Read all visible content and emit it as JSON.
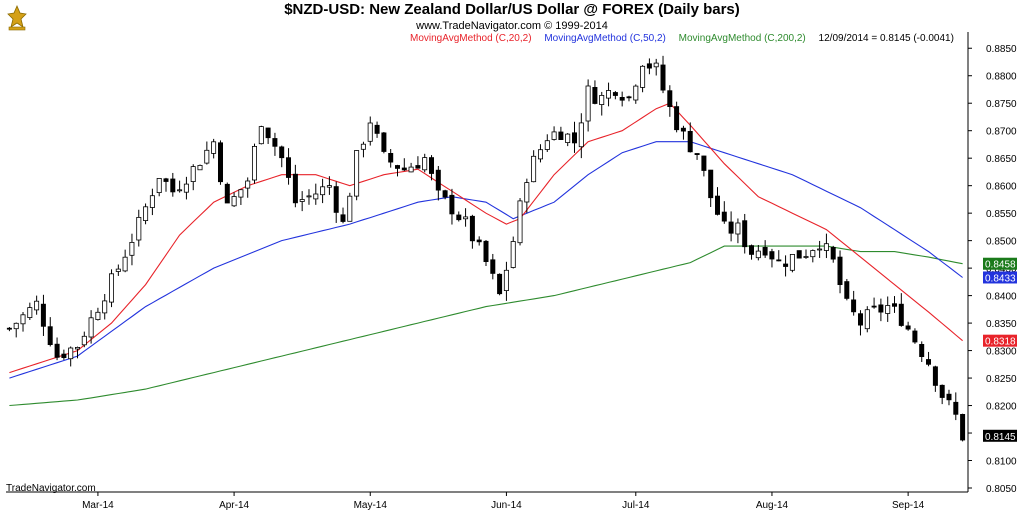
{
  "header": {
    "title": "$NZD-USD:  New Zealand Dollar/US Dollar @ FOREX  (Daily bars)",
    "copyright": "www.TradeNavigator.com © 1999-2014"
  },
  "legend": {
    "ma20": "MovingAvgMethod (C,20,2)",
    "ma50": "MovingAvgMethod (C,50,2)",
    "ma200": "MovingAvgMethod (C,200,2)",
    "last_value": "12/09/2014 = 0.8145 (-0.0041)"
  },
  "footer": {
    "brand": "TradeNavigator.com"
  },
  "colors": {
    "ma20": "#e8232a",
    "ma50": "#2233dd",
    "ma200": "#2e8b2e",
    "candle": "#000000",
    "logo": "#d4a017"
  },
  "chart_data": {
    "type": "candlestick",
    "y_axis": {
      "ylim": [
        0.805,
        0.8865
      ],
      "ticks": [
        "0.8850",
        "0.8800",
        "0.8750",
        "0.8700",
        "0.8650",
        "0.8600",
        "0.8550",
        "0.8500",
        "0.8450",
        "0.8400",
        "0.8350",
        "0.8300",
        "0.8250",
        "0.8200",
        "0.8150",
        "0.8100",
        "0.8050"
      ],
      "side": "right"
    },
    "x_axis": {
      "month_labels": [
        {
          "label": "Mar-14",
          "index": 13
        },
        {
          "label": "Apr-14",
          "index": 33
        },
        {
          "label": "May-14",
          "index": 53
        },
        {
          "label": "Jun-14",
          "index": 73
        },
        {
          "label": "Jul-14",
          "index": 92
        },
        {
          "label": "Aug-14",
          "index": 112
        },
        {
          "label": "Sep-14",
          "index": 132
        }
      ]
    },
    "value_labels": [
      {
        "series": "ma200",
        "text": "0.8458",
        "value": 0.8458,
        "bg": "#1a7a1a"
      },
      {
        "series": "ma50",
        "text": "0.8433",
        "value": 0.8433,
        "bg": "#2233dd"
      },
      {
        "series": "ma20",
        "text": "0.8318",
        "value": 0.8318,
        "bg": "#e8232a"
      },
      {
        "series": "close",
        "text": "0.8145",
        "value": 0.8145,
        "bg": "#000000"
      }
    ],
    "close_path": [
      [
        0,
        0.834
      ],
      [
        4,
        0.8385
      ],
      [
        7,
        0.829
      ],
      [
        10,
        0.831
      ],
      [
        13,
        0.838
      ],
      [
        16,
        0.845
      ],
      [
        19,
        0.853
      ],
      [
        22,
        0.862
      ],
      [
        24,
        0.859
      ],
      [
        27,
        0.863
      ],
      [
        30,
        0.868
      ],
      [
        32,
        0.856
      ],
      [
        35,
        0.861
      ],
      [
        37,
        0.872
      ],
      [
        40,
        0.865
      ],
      [
        42,
        0.857
      ],
      [
        44,
        0.858
      ],
      [
        47,
        0.86
      ],
      [
        49,
        0.853
      ],
      [
        51,
        0.865
      ],
      [
        53,
        0.872
      ],
      [
        55,
        0.865
      ],
      [
        58,
        0.863
      ],
      [
        61,
        0.865
      ],
      [
        63,
        0.858
      ],
      [
        65,
        0.856
      ],
      [
        67,
        0.853
      ],
      [
        70,
        0.846
      ],
      [
        72,
        0.84
      ],
      [
        74,
        0.85
      ],
      [
        76,
        0.862
      ],
      [
        79,
        0.869
      ],
      [
        81,
        0.87
      ],
      [
        83,
        0.868
      ],
      [
        85,
        0.877
      ],
      [
        87,
        0.876
      ],
      [
        89,
        0.878
      ],
      [
        91,
        0.876
      ],
      [
        93,
        0.883
      ],
      [
        95,
        0.881
      ],
      [
        97,
        0.874
      ],
      [
        99,
        0.869
      ],
      [
        101,
        0.866
      ],
      [
        103,
        0.858
      ],
      [
        105,
        0.852
      ],
      [
        107,
        0.852
      ],
      [
        109,
        0.848
      ],
      [
        111,
        0.849
      ],
      [
        113,
        0.846
      ],
      [
        115,
        0.847
      ],
      [
        117,
        0.848
      ],
      [
        119,
        0.85
      ],
      [
        121,
        0.846
      ],
      [
        123,
        0.838
      ],
      [
        125,
        0.835
      ],
      [
        127,
        0.837
      ],
      [
        129,
        0.838
      ],
      [
        131,
        0.836
      ],
      [
        133,
        0.832
      ],
      [
        135,
        0.828
      ],
      [
        137,
        0.822
      ],
      [
        139,
        0.818
      ],
      [
        140,
        0.8145
      ]
    ],
    "volatility": [
      [
        0,
        0.002
      ],
      [
        60,
        0.0022
      ],
      [
        100,
        0.0024
      ],
      [
        140,
        0.0022
      ]
    ],
    "ma20_path": [
      [
        0,
        0.826
      ],
      [
        5,
        0.828
      ],
      [
        10,
        0.83
      ],
      [
        15,
        0.835
      ],
      [
        20,
        0.842
      ],
      [
        25,
        0.851
      ],
      [
        30,
        0.857
      ],
      [
        35,
        0.86
      ],
      [
        40,
        0.862
      ],
      [
        45,
        0.862
      ],
      [
        50,
        0.86
      ],
      [
        55,
        0.862
      ],
      [
        60,
        0.863
      ],
      [
        65,
        0.859
      ],
      [
        70,
        0.855
      ],
      [
        73,
        0.853
      ],
      [
        75,
        0.854
      ],
      [
        80,
        0.862
      ],
      [
        85,
        0.868
      ],
      [
        90,
        0.87
      ],
      [
        95,
        0.874
      ],
      [
        97,
        0.875
      ],
      [
        100,
        0.871
      ],
      [
        105,
        0.864
      ],
      [
        110,
        0.858
      ],
      [
        115,
        0.855
      ],
      [
        120,
        0.852
      ],
      [
        125,
        0.847
      ],
      [
        130,
        0.842
      ],
      [
        135,
        0.837
      ],
      [
        140,
        0.8318
      ]
    ],
    "ma50_path": [
      [
        0,
        0.825
      ],
      [
        10,
        0.829
      ],
      [
        20,
        0.838
      ],
      [
        30,
        0.845
      ],
      [
        40,
        0.85
      ],
      [
        50,
        0.853
      ],
      [
        55,
        0.855
      ],
      [
        60,
        0.857
      ],
      [
        65,
        0.858
      ],
      [
        70,
        0.857
      ],
      [
        74,
        0.854
      ],
      [
        80,
        0.857
      ],
      [
        85,
        0.862
      ],
      [
        90,
        0.866
      ],
      [
        95,
        0.868
      ],
      [
        100,
        0.868
      ],
      [
        105,
        0.866
      ],
      [
        110,
        0.864
      ],
      [
        115,
        0.862
      ],
      [
        120,
        0.859
      ],
      [
        125,
        0.856
      ],
      [
        130,
        0.852
      ],
      [
        135,
        0.848
      ],
      [
        140,
        0.8433
      ]
    ],
    "ma200_path": [
      [
        0,
        0.82
      ],
      [
        10,
        0.821
      ],
      [
        20,
        0.823
      ],
      [
        30,
        0.826
      ],
      [
        40,
        0.829
      ],
      [
        50,
        0.832
      ],
      [
        60,
        0.835
      ],
      [
        70,
        0.838
      ],
      [
        80,
        0.84
      ],
      [
        90,
        0.843
      ],
      [
        100,
        0.846
      ],
      [
        105,
        0.849
      ],
      [
        110,
        0.849
      ],
      [
        115,
        0.849
      ],
      [
        120,
        0.849
      ],
      [
        125,
        0.848
      ],
      [
        130,
        0.848
      ],
      [
        135,
        0.847
      ],
      [
        140,
        0.8458
      ]
    ]
  }
}
